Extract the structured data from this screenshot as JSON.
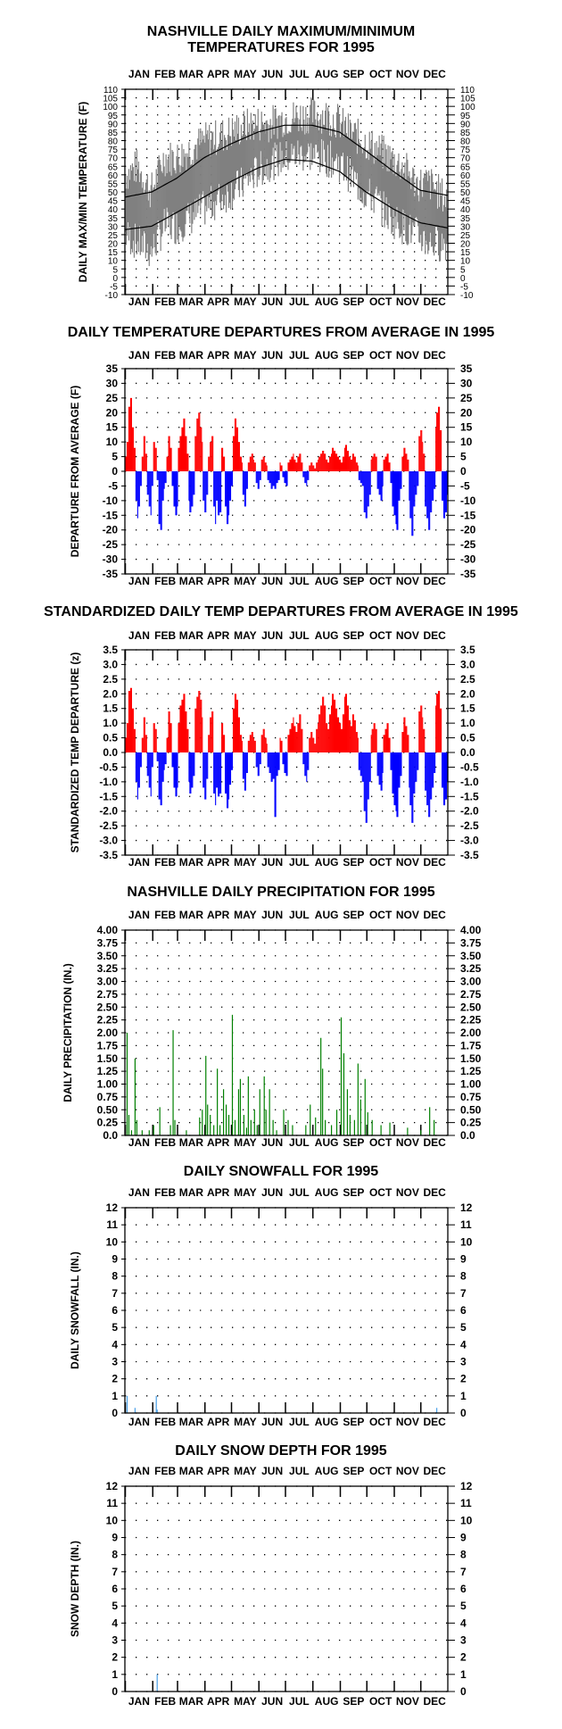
{
  "months": [
    "JAN",
    "FEB",
    "MAR",
    "APR",
    "MAY",
    "JUN",
    "JUL",
    "AUG",
    "SEP",
    "OCT",
    "NOV",
    "DEC"
  ],
  "colors": {
    "pos": "#ff0000",
    "neg": "#0000ff",
    "range": "#808080",
    "precip": "#008000",
    "snow": "#4aa0e8",
    "axis": "#000000"
  },
  "chart_data": [
    {
      "type": "line",
      "title": [
        "NASHVILLE DAILY MAXIMUM/MINIMUM",
        "TEMPERATURES FOR 1995"
      ],
      "ylabel": "DAILY MAX/MIN TEMPERATURE (F)",
      "ylim": [
        -10,
        110
      ],
      "yticks": [
        -10,
        -5,
        0,
        5,
        10,
        15,
        20,
        25,
        30,
        35,
        40,
        45,
        50,
        55,
        60,
        65,
        70,
        75,
        80,
        85,
        90,
        95,
        100,
        105,
        110
      ],
      "grid": true,
      "series": [
        {
          "kind": "range",
          "values_max_keypoints": [
            [
              1,
              60
            ],
            [
              15,
              65
            ],
            [
              30,
              50
            ],
            [
              45,
              70
            ],
            [
              60,
              70
            ],
            [
              75,
              75
            ],
            [
              90,
              80
            ],
            [
              105,
              82
            ],
            [
              120,
              85
            ],
            [
              135,
              88
            ],
            [
              150,
              90
            ],
            [
              165,
              90
            ],
            [
              180,
              93
            ],
            [
              195,
              94
            ],
            [
              210,
              95
            ],
            [
              225,
              95
            ],
            [
              240,
              92
            ],
            [
              255,
              85
            ],
            [
              270,
              80
            ],
            [
              285,
              75
            ],
            [
              300,
              70
            ],
            [
              315,
              65
            ],
            [
              330,
              55
            ],
            [
              345,
              55
            ],
            [
              365,
              45
            ]
          ],
          "values_min_keypoints": [
            [
              1,
              25
            ],
            [
              15,
              20
            ],
            [
              30,
              15
            ],
            [
              45,
              30
            ],
            [
              60,
              30
            ],
            [
              75,
              35
            ],
            [
              90,
              40
            ],
            [
              105,
              45
            ],
            [
              120,
              50
            ],
            [
              135,
              55
            ],
            [
              150,
              62
            ],
            [
              165,
              67
            ],
            [
              180,
              70
            ],
            [
              195,
              72
            ],
            [
              210,
              72
            ],
            [
              225,
              70
            ],
            [
              240,
              68
            ],
            [
              255,
              60
            ],
            [
              270,
              50
            ],
            [
              285,
              45
            ],
            [
              300,
              35
            ],
            [
              315,
              30
            ],
            [
              330,
              25
            ],
            [
              345,
              20
            ],
            [
              365,
              20
            ]
          ]
        },
        {
          "kind": "normal_max",
          "values_keypoints": [
            [
              1,
              47
            ],
            [
              31,
              50
            ],
            [
              59,
              58
            ],
            [
              90,
              70
            ],
            [
              120,
              78
            ],
            [
              151,
              85
            ],
            [
              181,
              89
            ],
            [
              212,
              89
            ],
            [
              243,
              85
            ],
            [
              273,
              74
            ],
            [
              304,
              62
            ],
            [
              334,
              51
            ],
            [
              365,
              48
            ]
          ]
        },
        {
          "kind": "normal_min",
          "values_keypoints": [
            [
              1,
              28
            ],
            [
              31,
              30
            ],
            [
              59,
              38
            ],
            [
              90,
              47
            ],
            [
              120,
              56
            ],
            [
              151,
              64
            ],
            [
              181,
              69
            ],
            [
              212,
              68
            ],
            [
              243,
              62
            ],
            [
              273,
              50
            ],
            [
              304,
              40
            ],
            [
              334,
              32
            ],
            [
              365,
              29
            ]
          ]
        }
      ]
    },
    {
      "type": "bar",
      "title": [
        "DAILY TEMPERATURE DEPARTURES FROM AVERAGE IN 1995"
      ],
      "ylabel": "DEPARTURE FROM AVERAGE (F)",
      "ylim": [
        -35,
        35
      ],
      "yticks": [
        -35,
        -30,
        -25,
        -20,
        -15,
        -10,
        -5,
        0,
        5,
        10,
        15,
        20,
        25,
        30,
        35
      ],
      "grid": true,
      "values": [
        5,
        10,
        22,
        25,
        15,
        8,
        -10,
        -16,
        -12,
        -5,
        5,
        12,
        6,
        -8,
        -12,
        -15,
        -5,
        10,
        8,
        -3,
        -18,
        -20,
        -10,
        -6,
        -4,
        5,
        12,
        8,
        -5,
        -12,
        -15,
        -12,
        8,
        12,
        15,
        18,
        12,
        6,
        -10,
        -14,
        -12,
        -8,
        12,
        18,
        20,
        15,
        10,
        -10,
        -14,
        -8,
        5,
        10,
        12,
        -12,
        -18,
        -10,
        -15,
        -14,
        8,
        5,
        -12,
        -18,
        -15,
        -10,
        -5,
        12,
        18,
        15,
        10,
        5,
        3,
        -8,
        -12,
        -6,
        3,
        5,
        6,
        4,
        3,
        -4,
        -6,
        -3,
        4,
        5,
        3,
        2,
        -3,
        -4,
        -6,
        -5,
        -6,
        -4,
        -3,
        3,
        2,
        -2,
        -4,
        -5,
        3,
        4,
        5,
        6,
        4,
        3,
        5,
        6,
        3,
        -2,
        -4,
        -5,
        -3,
        2,
        3,
        2,
        1,
        3,
        4,
        5,
        6,
        7,
        6,
        4,
        3,
        5,
        6,
        8,
        7,
        6,
        5,
        4,
        3,
        5,
        8,
        9,
        7,
        5,
        4,
        6,
        5,
        3,
        2,
        -3,
        -4,
        -5,
        -14,
        -16,
        -12,
        -8,
        4,
        5,
        6,
        5,
        -6,
        -8,
        -10,
        -5,
        4,
        5,
        6,
        3,
        -4,
        -12,
        -15,
        -18,
        -20,
        -10,
        -6,
        5,
        8,
        6,
        4,
        -10,
        -16,
        -22,
        -12,
        -8,
        -5,
        12,
        14,
        10,
        6,
        -12,
        -16,
        -20,
        -14,
        -10,
        -6,
        15,
        20,
        22,
        14,
        -10,
        -16,
        -14,
        -8
      ],
      "series_note": "approximate daily departures"
    },
    {
      "type": "bar",
      "title": [
        "STANDARDIZED DAILY TEMP DEPARTURES FROM AVERAGE IN 1995"
      ],
      "ylabel": "STANDARDIZED TEMP DEPARTURE (z)",
      "ylim": [
        -3.5,
        3.5
      ],
      "yticks": [
        -3.5,
        -3.0,
        -2.5,
        -2.0,
        -1.5,
        -1.0,
        -0.5,
        0.0,
        0.5,
        1.0,
        1.5,
        2.0,
        2.5,
        3.0,
        3.5
      ],
      "grid": true,
      "values": [
        0.5,
        1.0,
        2.1,
        2.2,
        1.5,
        0.8,
        -1.0,
        -1.6,
        -1.2,
        -0.5,
        0.5,
        1.2,
        0.6,
        -0.8,
        -1.2,
        -1.5,
        -0.5,
        1.0,
        0.8,
        -0.3,
        -1.6,
        -1.8,
        -1.0,
        -0.6,
        -0.4,
        0.5,
        1.4,
        1.0,
        -0.5,
        -1.2,
        -1.5,
        -1.2,
        1.0,
        1.6,
        1.8,
        2.0,
        1.4,
        0.8,
        -1.0,
        -1.4,
        -1.2,
        -0.8,
        1.5,
        1.9,
        2.1,
        1.8,
        1.2,
        -1.2,
        -1.6,
        -0.9,
        0.6,
        1.2,
        1.4,
        -1.4,
        -1.8,
        -1.2,
        -1.5,
        -1.4,
        1.0,
        0.6,
        -1.4,
        -1.9,
        -1.6,
        -1.1,
        -0.6,
        1.5,
        2.0,
        1.8,
        1.2,
        0.6,
        0.4,
        -0.9,
        -1.3,
        -0.7,
        0.4,
        0.6,
        0.7,
        0.5,
        0.4,
        -0.5,
        -0.8,
        -0.4,
        0.6,
        0.8,
        0.5,
        0.3,
        -0.5,
        -0.7,
        -1.0,
        -0.9,
        -2.2,
        -0.8,
        -0.6,
        0.5,
        0.4,
        -0.4,
        -0.7,
        -0.8,
        0.6,
        0.8,
        1.0,
        1.2,
        0.9,
        0.7,
        1.0,
        1.3,
        0.8,
        -0.4,
        -0.8,
        -1.0,
        -0.6,
        0.5,
        0.7,
        0.5,
        0.3,
        0.8,
        1.0,
        1.3,
        1.6,
        1.9,
        1.6,
        1.0,
        0.8,
        1.3,
        1.6,
        2.0,
        1.8,
        1.5,
        1.2,
        1.0,
        0.8,
        1.3,
        1.9,
        2.0,
        1.6,
        1.1,
        0.9,
        1.3,
        1.1,
        0.7,
        0.5,
        -0.6,
        -0.8,
        -1.0,
        -2.0,
        -2.4,
        -1.6,
        -1.0,
        0.6,
        0.8,
        1.0,
        0.8,
        -0.8,
        -1.1,
        -1.3,
        -0.7,
        0.6,
        0.8,
        1.0,
        0.5,
        -0.6,
        -1.4,
        -1.8,
        -2.0,
        -2.2,
        -1.2,
        -0.8,
        0.7,
        1.2,
        0.9,
        0.6,
        -1.2,
        -1.8,
        -2.4,
        -1.4,
        -1.0,
        -0.6,
        1.4,
        1.6,
        1.2,
        0.8,
        -1.3,
        -1.8,
        -2.2,
        -1.6,
        -1.2,
        -0.7,
        1.6,
        2.0,
        2.1,
        1.5,
        -1.2,
        -1.8,
        -1.6,
        -1.0
      ]
    },
    {
      "type": "bar",
      "title": [
        "NASHVILLE DAILY PRECIPITATION FOR 1995"
      ],
      "ylabel": "DAILY PRECIPITATION (IN.)",
      "ylim": [
        0,
        4
      ],
      "yticks": [
        "0.0",
        "0.25",
        "0.50",
        "0.75",
        "1.00",
        "1.25",
        "1.50",
        "1.75",
        "2.00",
        "2.25",
        "2.50",
        "2.75",
        "3.00",
        "3.25",
        "3.50",
        "3.75",
        "4.00"
      ],
      "grid": true,
      "day_values": [
        [
          3,
          2.0
        ],
        [
          5,
          0.4
        ],
        [
          8,
          0.1
        ],
        [
          12,
          1.5
        ],
        [
          14,
          0.3
        ],
        [
          20,
          0.1
        ],
        [
          28,
          0.1
        ],
        [
          33,
          0.2
        ],
        [
          40,
          0.55
        ],
        [
          52,
          0.2
        ],
        [
          55,
          2.05
        ],
        [
          57,
          0.3
        ],
        [
          70,
          0.1
        ],
        [
          85,
          0.35
        ],
        [
          88,
          0.5
        ],
        [
          92,
          1.55
        ],
        [
          94,
          0.6
        ],
        [
          97,
          0.4
        ],
        [
          101,
          0.2
        ],
        [
          105,
          1.3
        ],
        [
          108,
          0.2
        ],
        [
          112,
          0.9
        ],
        [
          115,
          0.6
        ],
        [
          118,
          0.4
        ],
        [
          122,
          2.35
        ],
        [
          125,
          0.3
        ],
        [
          129,
          0.9
        ],
        [
          131,
          1.1
        ],
        [
          135,
          0.4
        ],
        [
          138,
          0.15
        ],
        [
          140,
          1.15
        ],
        [
          143,
          0.3
        ],
        [
          147,
          0.5
        ],
        [
          150,
          0.2
        ],
        [
          153,
          0.9
        ],
        [
          158,
          1.15
        ],
        [
          160,
          0.5
        ],
        [
          164,
          0.9
        ],
        [
          168,
          0.3
        ],
        [
          172,
          0.1
        ],
        [
          180,
          0.5
        ],
        [
          185,
          0.3
        ],
        [
          190,
          0.2
        ],
        [
          205,
          0.2
        ],
        [
          210,
          0.6
        ],
        [
          216,
          0.35
        ],
        [
          222,
          1.9
        ],
        [
          224,
          1.3
        ],
        [
          227,
          0.3
        ],
        [
          234,
          0.2
        ],
        [
          240,
          0.5
        ],
        [
          245,
          2.3
        ],
        [
          248,
          1.6
        ],
        [
          252,
          0.9
        ],
        [
          255,
          0.4
        ],
        [
          260,
          0.3
        ],
        [
          264,
          1.4
        ],
        [
          267,
          0.7
        ],
        [
          272,
          1.1
        ],
        [
          275,
          0.45
        ],
        [
          280,
          0.3
        ],
        [
          290,
          0.2
        ],
        [
          300,
          0.25
        ],
        [
          320,
          0.15
        ],
        [
          335,
          0.1
        ],
        [
          345,
          0.55
        ],
        [
          350,
          0.3
        ]
      ]
    },
    {
      "type": "bar",
      "title": [
        "DAILY SNOWFALL FOR 1995"
      ],
      "ylabel": "DAILY SNOWFALL (IN.)",
      "ylim": [
        0,
        12
      ],
      "yticks": [
        0,
        1,
        2,
        3,
        4,
        5,
        6,
        7,
        8,
        9,
        10,
        11,
        12
      ],
      "grid": true,
      "day_values": [
        [
          3,
          1.0
        ],
        [
          12,
          0.3
        ],
        [
          36,
          1.0
        ],
        [
          37,
          0.2
        ],
        [
          353,
          0.3
        ]
      ]
    },
    {
      "type": "bar",
      "title": [
        "DAILY SNOW DEPTH FOR 1995"
      ],
      "ylabel": "SNOW DEPTH (IN.)",
      "ylim": [
        0,
        12
      ],
      "yticks": [
        0,
        1,
        2,
        3,
        4,
        5,
        6,
        7,
        8,
        9,
        10,
        11,
        12
      ],
      "grid": true,
      "day_values": [
        [
          37,
          1.0
        ]
      ]
    }
  ]
}
